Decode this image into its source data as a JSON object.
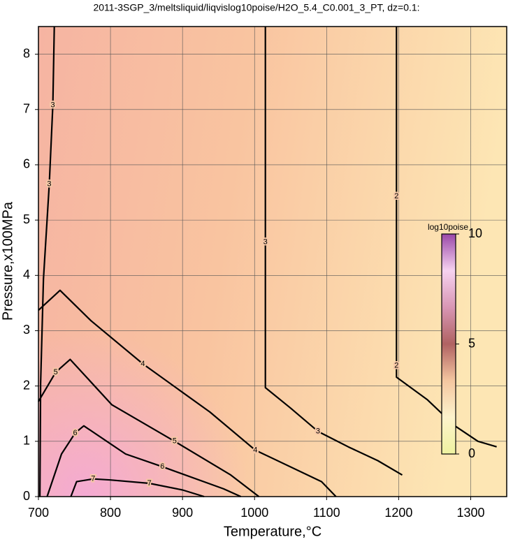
{
  "chart_data": {
    "type": "contour",
    "title": "2011-3SGP_3/meltsliquid/liqvislog10poise/H2O_5.4_C0.001_3_PT, dz=0.1:",
    "xlabel": "Temperature,°C",
    "ylabel": "Pressure,x100MPa",
    "xlim": [
      700,
      1350
    ],
    "ylim": [
      0,
      8.5
    ],
    "xticks": [
      700,
      800,
      900,
      1000,
      1100,
      1200,
      1300
    ],
    "yticks": [
      0,
      1,
      2,
      3,
      4,
      5,
      6,
      7,
      8
    ],
    "grid": true,
    "line_color": "#000000",
    "contours": [
      {
        "level": 2,
        "x": [
          1197,
          1197,
          1197,
          1197,
          1240,
          1278,
          1310,
          1336
        ],
        "y": [
          8.5,
          5.43,
          2.37,
          2.16,
          1.75,
          1.28,
          1.0,
          0.9
        ]
      },
      {
        "level": 3,
        "x": [
          1015,
          1015,
          1015,
          1050,
          1088,
          1130,
          1171,
          1205
        ],
        "y": [
          8.5,
          4.6,
          1.97,
          1.6,
          1.18,
          0.9,
          0.65,
          0.39
        ]
      },
      {
        "level": 3,
        "x": [
          722,
          720,
          715,
          707,
          703,
          702
        ],
        "y": [
          8.5,
          7.08,
          5.65,
          3.94,
          2.04,
          0
        ]
      },
      {
        "level": 4,
        "x": [
          700,
          730,
          773,
          845,
          938,
          1001,
          1093,
          1113
        ],
        "y": [
          3.37,
          3.73,
          3.18,
          2.4,
          1.53,
          0.84,
          0.27,
          0
        ]
      },
      {
        "level": 5,
        "x": [
          700,
          724,
          744,
          802,
          889,
          967,
          1006
        ],
        "y": [
          1.72,
          2.25,
          2.48,
          1.66,
          1.0,
          0.39,
          0
        ]
      },
      {
        "level": 6,
        "x": [
          712,
          732,
          751,
          763,
          821,
          872,
          957,
          981
        ],
        "y": [
          0,
          0.77,
          1.15,
          1.28,
          0.77,
          0.54,
          0.14,
          0
        ]
      },
      {
        "level": 7,
        "x": [
          745,
          753,
          776,
          800,
          854,
          900,
          930
        ],
        "y": [
          0,
          0.27,
          0.32,
          0.3,
          0.24,
          0.12,
          0
        ]
      }
    ],
    "colorbar": {
      "label": "log10poise",
      "lim": [
        0,
        10
      ],
      "ticks": [
        0,
        5,
        10
      ],
      "colors": [
        "#eef2a0",
        "#fdf3cc",
        "#f4c6a0",
        "#b06262",
        "#d896b4",
        "#f6d2f0",
        "#9a48a8"
      ]
    }
  }
}
